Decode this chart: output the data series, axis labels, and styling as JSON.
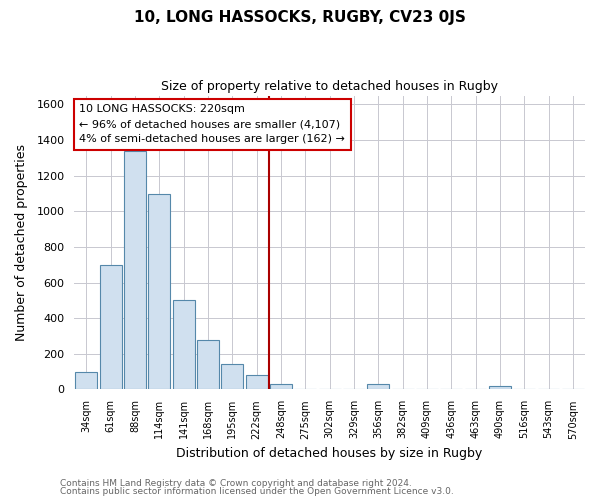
{
  "title": "10, LONG HASSOCKS, RUGBY, CV23 0JS",
  "subtitle": "Size of property relative to detached houses in Rugby",
  "xlabel": "Distribution of detached houses by size in Rugby",
  "ylabel": "Number of detached properties",
  "bin_labels": [
    "34sqm",
    "61sqm",
    "88sqm",
    "114sqm",
    "141sqm",
    "168sqm",
    "195sqm",
    "222sqm",
    "248sqm",
    "275sqm",
    "302sqm",
    "329sqm",
    "356sqm",
    "382sqm",
    "409sqm",
    "436sqm",
    "463sqm",
    "490sqm",
    "516sqm",
    "543sqm",
    "570sqm"
  ],
  "bar_values": [
    100,
    700,
    1340,
    1100,
    500,
    280,
    145,
    80,
    30,
    0,
    0,
    0,
    30,
    0,
    0,
    0,
    0,
    20,
    0,
    0,
    0
  ],
  "bar_color": "#d0e0ef",
  "bar_edge_color": "#5588aa",
  "vline_x_index": 7,
  "vline_color": "#aa0000",
  "ylim": [
    0,
    1650
  ],
  "yticks": [
    0,
    200,
    400,
    600,
    800,
    1000,
    1200,
    1400,
    1600
  ],
  "annotation_title": "10 LONG HASSOCKS: 220sqm",
  "annotation_line1": "← 96% of detached houses are smaller (4,107)",
  "annotation_line2": "4% of semi-detached houses are larger (162) →",
  "annotation_box_color": "#ffffff",
  "annotation_box_edge": "#cc0000",
  "footer_line1": "Contains HM Land Registry data © Crown copyright and database right 2024.",
  "footer_line2": "Contains public sector information licensed under the Open Government Licence v3.0.",
  "background_color": "#ffffff",
  "grid_color": "#c8c8d0"
}
